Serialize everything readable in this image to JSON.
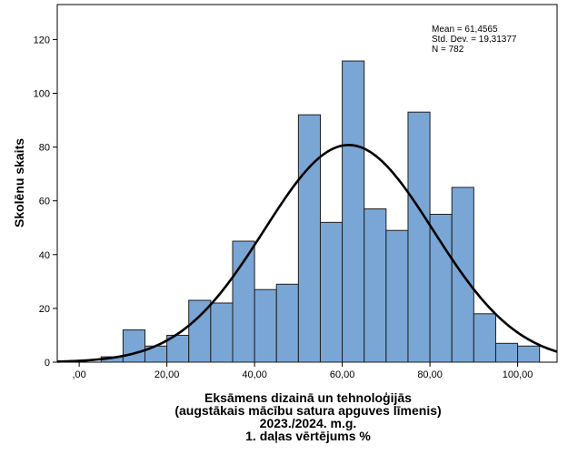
{
  "chart_data": {
    "type": "bar",
    "subtype": "histogram_with_normal_curve",
    "bins": [
      {
        "x0": 5,
        "x1": 10,
        "count": 2
      },
      {
        "x0": 10,
        "x1": 15,
        "count": 12
      },
      {
        "x0": 15,
        "x1": 20,
        "count": 6
      },
      {
        "x0": 20,
        "x1": 25,
        "count": 10
      },
      {
        "x0": 25,
        "x1": 30,
        "count": 23
      },
      {
        "x0": 30,
        "x1": 35,
        "count": 22
      },
      {
        "x0": 35,
        "x1": 40,
        "count": 45
      },
      {
        "x0": 40,
        "x1": 45,
        "count": 27
      },
      {
        "x0": 45,
        "x1": 50,
        "count": 29
      },
      {
        "x0": 50,
        "x1": 55,
        "count": 92
      },
      {
        "x0": 55,
        "x1": 60,
        "count": 52
      },
      {
        "x0": 60,
        "x1": 65,
        "count": 112
      },
      {
        "x0": 65,
        "x1": 70,
        "count": 57
      },
      {
        "x0": 70,
        "x1": 75,
        "count": 49
      },
      {
        "x0": 75,
        "x1": 80,
        "count": 93
      },
      {
        "x0": 80,
        "x1": 85,
        "count": 55
      },
      {
        "x0": 85,
        "x1": 90,
        "count": 65
      },
      {
        "x0": 90,
        "x1": 95,
        "count": 18
      },
      {
        "x0": 95,
        "x1": 100,
        "count": 7
      },
      {
        "x0": 100,
        "x1": 105,
        "count": 6
      }
    ],
    "normal_curve": {
      "mean": 61.4565,
      "sd": 19.31377,
      "n": 782,
      "bin_width": 5
    },
    "xlim": [
      -5,
      109
    ],
    "ylim": [
      0,
      133
    ],
    "xticks": [
      0,
      20,
      40,
      60,
      80,
      100
    ],
    "xtick_labels": [
      ",00",
      "20,00",
      "40,00",
      "60,00",
      "80,00",
      "100,00"
    ],
    "yticks": [
      0,
      20,
      40,
      60,
      80,
      100,
      120
    ],
    "ytick_labels": [
      "0",
      "20",
      "40",
      "60",
      "80",
      "100",
      "120"
    ],
    "xlabel_lines": [
      "Eksāmens dizainā un tehnoloģijās",
      "(augstākais mācību satura apguves līmenis)",
      "2023./2024. m.g.",
      "1. daļas vērtējums %"
    ],
    "ylabel": "Skolēnu skaits",
    "stats_lines": [
      "Mean = 61,4565",
      "Std. Dev. = 19,31377",
      "N = 782"
    ],
    "bar_fill": "#7aa6d6",
    "bar_stroke": "#1f1f1f",
    "curve_color": "#000000",
    "grid": false
  }
}
